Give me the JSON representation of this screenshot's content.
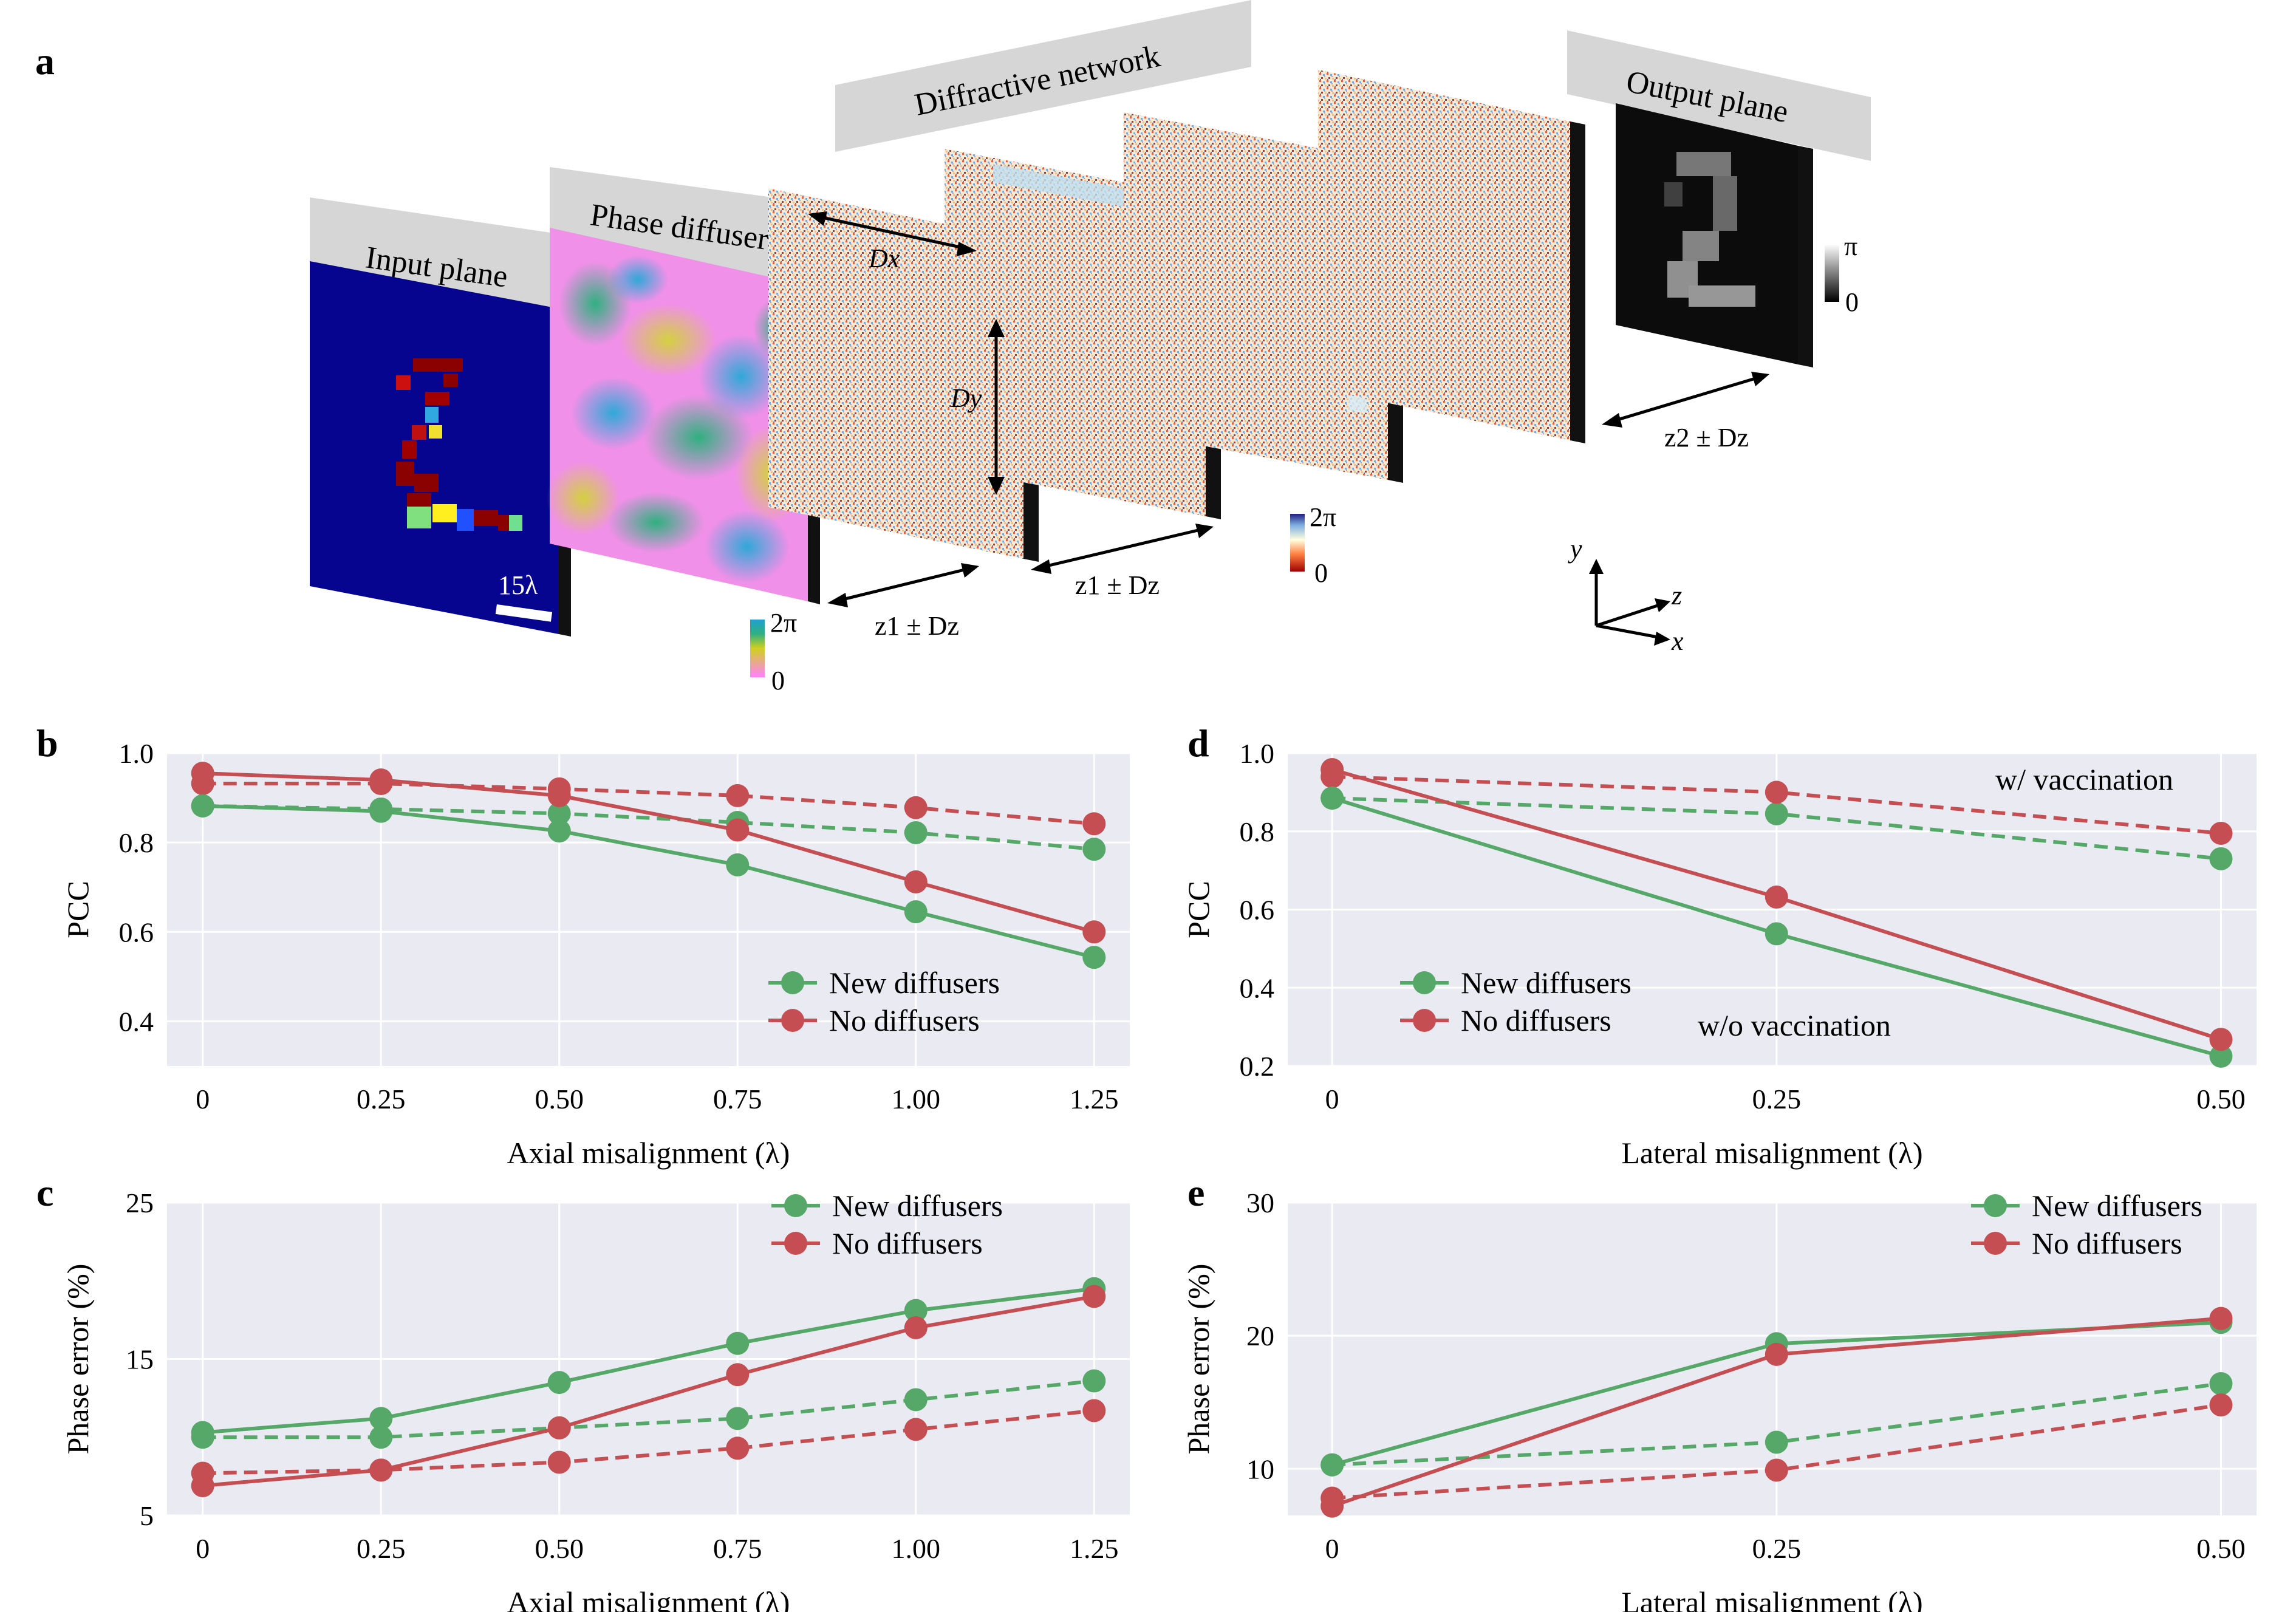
{
  "panel_a": {
    "letter": "a",
    "input_plane_label": "Input plane",
    "phase_diffuser_label": "Phase diffuser",
    "diffractive_network_label": "Diffractive network",
    "output_plane_label": "Output plane",
    "scale_bar_label": "15λ",
    "dx_label": "Dx",
    "dy_label": "Dy",
    "z1_label_a": "z1 ± Dz",
    "z1_label_b": "z1 ± Dz",
    "z2_label": "z2 ± Dz",
    "diffuser_colorbar": {
      "max": "2π",
      "min": "0"
    },
    "layer_colorbar": {
      "max": "2π",
      "min": "0"
    },
    "output_colorbar": {
      "max": "π",
      "min": "0"
    },
    "axes": {
      "y": "y",
      "z": "z",
      "x": "x"
    },
    "colors": {
      "input_bg": "#05058f",
      "banner": "#d6d6d6"
    }
  },
  "chart_data": [
    {
      "panel": "b",
      "type": "line",
      "xlabel": "Axial misalignment (λ)",
      "ylabel": "PCC",
      "categories": [
        "0",
        "0.25",
        "0.50",
        "0.75",
        "1.00",
        "1.25"
      ],
      "x": [
        0,
        0.25,
        0.5,
        0.75,
        1.0,
        1.25
      ],
      "xlim": [
        -0.05,
        1.3
      ],
      "ylim": [
        0.3,
        1.0
      ],
      "yticks": [
        "0.4",
        "0.6",
        "0.8",
        "1.0"
      ],
      "ytick_values": [
        0.4,
        0.6,
        0.8,
        1.0
      ],
      "legend": [
        "New diffusers",
        "No diffusers"
      ],
      "legend_position": "lower-right",
      "series": [
        {
          "name": "New diffusers",
          "style": "solid",
          "color": "#55a868",
          "values": [
            0.882,
            0.87,
            0.826,
            0.75,
            0.645,
            0.543
          ]
        },
        {
          "name": "No diffusers",
          "style": "solid",
          "color": "#c44e52",
          "values": [
            0.955,
            0.94,
            0.905,
            0.828,
            0.712,
            0.6
          ]
        },
        {
          "style": "dashed",
          "color": "#55a868",
          "values": [
            0.882,
            0.875,
            0.865,
            0.845,
            0.822,
            0.785
          ]
        },
        {
          "style": "dashed",
          "color": "#c44e52",
          "values": [
            0.932,
            0.932,
            0.92,
            0.905,
            0.878,
            0.842
          ]
        }
      ]
    },
    {
      "panel": "c",
      "type": "line",
      "xlabel": "Axial misalignment (λ)",
      "ylabel": "Phase error (%)",
      "categories": [
        "0",
        "0.25",
        "0.50",
        "0.75",
        "1.00",
        "1.25"
      ],
      "x": [
        0,
        0.25,
        0.5,
        0.75,
        1.0,
        1.25
      ],
      "xlim": [
        -0.05,
        1.3
      ],
      "ylim": [
        5,
        25
      ],
      "yticks": [
        "5",
        "15",
        "25"
      ],
      "ytick_values": [
        5,
        15,
        25
      ],
      "legend": [
        "New diffusers",
        "No diffusers"
      ],
      "legend_position": "top-right",
      "series": [
        {
          "name": "New diffusers",
          "style": "solid",
          "color": "#55a868",
          "values": [
            10.3,
            11.2,
            13.5,
            16.0,
            18.1,
            19.5
          ]
        },
        {
          "name": "No diffusers",
          "style": "solid",
          "color": "#c44e52",
          "values": [
            6.9,
            7.9,
            10.6,
            14.0,
            17.0,
            19.0
          ]
        },
        {
          "style": "dashed",
          "color": "#55a868",
          "values": [
            10.0,
            10.0,
            10.6,
            11.2,
            12.4,
            13.6
          ]
        },
        {
          "style": "dashed",
          "color": "#c44e52",
          "values": [
            7.7,
            7.9,
            8.4,
            9.3,
            10.5,
            11.7
          ]
        }
      ]
    },
    {
      "panel": "d",
      "type": "line",
      "xlabel": "Lateral misalignment (λ)",
      "ylabel": "PCC",
      "categories": [
        "0",
        "0.25",
        "0.50"
      ],
      "x": [
        0,
        0.25,
        0.5
      ],
      "xlim": [
        -0.025,
        0.52
      ],
      "ylim": [
        0.2,
        1.0
      ],
      "yticks": [
        "0.2",
        "0.4",
        "0.6",
        "0.8",
        "1.0"
      ],
      "ytick_values": [
        0.2,
        0.4,
        0.6,
        0.8,
        1.0
      ],
      "legend": [
        "New diffusers",
        "No diffusers"
      ],
      "legend_position": "lower-left",
      "annotations": [
        "w/ vaccination",
        "w/o vaccination"
      ],
      "series": [
        {
          "name": "New diffusers",
          "style": "solid",
          "color": "#55a868",
          "values": [
            0.885,
            0.538,
            0.225
          ]
        },
        {
          "name": "No diffusers",
          "style": "solid",
          "color": "#c44e52",
          "values": [
            0.958,
            0.632,
            0.268
          ]
        },
        {
          "style": "dashed",
          "color": "#55a868",
          "values": [
            0.885,
            0.845,
            0.73
          ]
        },
        {
          "style": "dashed",
          "color": "#c44e52",
          "values": [
            0.94,
            0.9,
            0.795
          ]
        }
      ]
    },
    {
      "panel": "e",
      "type": "line",
      "xlabel": "Lateral misalignment (λ)",
      "ylabel": "Phase error (%)",
      "categories": [
        "0",
        "0.25",
        "0.50"
      ],
      "x": [
        0,
        0.25,
        0.5
      ],
      "xlim": [
        -0.025,
        0.52
      ],
      "ylim": [
        6.5,
        30
      ],
      "yticks": [
        "10",
        "20",
        "30"
      ],
      "ytick_values": [
        10,
        20,
        30
      ],
      "legend": [
        "New diffusers",
        "No diffusers"
      ],
      "legend_position": "top-right",
      "series": [
        {
          "name": "New diffusers",
          "style": "solid",
          "color": "#55a868",
          "values": [
            10.3,
            19.4,
            21.0
          ]
        },
        {
          "name": "No diffusers",
          "style": "solid",
          "color": "#c44e52",
          "values": [
            7.2,
            18.6,
            21.3
          ]
        },
        {
          "style": "dashed",
          "color": "#55a868",
          "values": [
            10.3,
            12.0,
            16.4
          ]
        },
        {
          "style": "dashed",
          "color": "#c44e52",
          "values": [
            7.8,
            9.9,
            14.8
          ]
        }
      ]
    }
  ]
}
